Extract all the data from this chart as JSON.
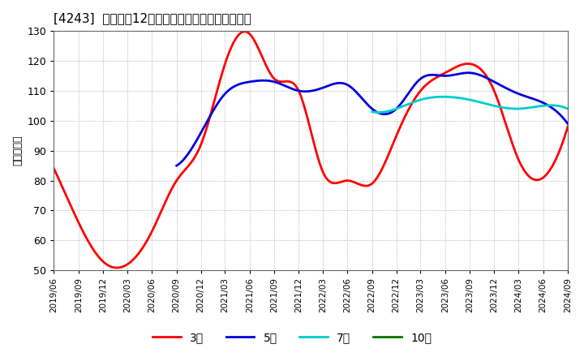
{
  "title": "[4243]  経常利益12か月移動合計の標準偏差の推移",
  "ylabel": "（百万円）",
  "ylim": [
    50,
    130
  ],
  "yticks": [
    50,
    60,
    70,
    80,
    90,
    100,
    110,
    120,
    130
  ],
  "background_color": "#ffffff",
  "plot_bg_color": "#ffffff",
  "grid_color": "#999999",
  "series": {
    "3年": {
      "color": "#ff0000",
      "points": [
        [
          "2019-06",
          84
        ],
        [
          "2019-09",
          66
        ],
        [
          "2019-12",
          53
        ],
        [
          "2020-03",
          52
        ],
        [
          "2020-06",
          63
        ],
        [
          "2020-09",
          80
        ],
        [
          "2020-12",
          92
        ],
        [
          "2021-03",
          119
        ],
        [
          "2021-06",
          129
        ],
        [
          "2021-09",
          114
        ],
        [
          "2021-12",
          110
        ],
        [
          "2022-03",
          83
        ],
        [
          "2022-06",
          80
        ],
        [
          "2022-09",
          79
        ],
        [
          "2022-12",
          95
        ],
        [
          "2023-03",
          110
        ],
        [
          "2023-06",
          116
        ],
        [
          "2023-09",
          119
        ],
        [
          "2023-12",
          110
        ],
        [
          "2024-03",
          87
        ],
        [
          "2024-06",
          81
        ],
        [
          "2024-09",
          98
        ]
      ]
    },
    "5年": {
      "color": "#0000dd",
      "points": [
        [
          "2020-09",
          85
        ],
        [
          "2020-12",
          96
        ],
        [
          "2021-03",
          109
        ],
        [
          "2021-06",
          113
        ],
        [
          "2021-09",
          113
        ],
        [
          "2021-12",
          110
        ],
        [
          "2022-03",
          111
        ],
        [
          "2022-06",
          112
        ],
        [
          "2022-09",
          104
        ],
        [
          "2022-12",
          104
        ],
        [
          "2023-03",
          114
        ],
        [
          "2023-06",
          115
        ],
        [
          "2023-09",
          116
        ],
        [
          "2023-12",
          113
        ],
        [
          "2024-03",
          109
        ],
        [
          "2024-06",
          106
        ],
        [
          "2024-09",
          99
        ]
      ]
    },
    "7年": {
      "color": "#00cccc",
      "points": [
        [
          "2022-09",
          103
        ],
        [
          "2022-12",
          104
        ],
        [
          "2023-03",
          107
        ],
        [
          "2023-06",
          108
        ],
        [
          "2023-09",
          107
        ],
        [
          "2023-12",
          105
        ],
        [
          "2024-03",
          104
        ],
        [
          "2024-06",
          105
        ],
        [
          "2024-09",
          104
        ]
      ]
    },
    "10年": {
      "color": "#007700",
      "points": []
    }
  },
  "xtick_labels": [
    "2019/06",
    "2019/09",
    "2019/12",
    "2020/03",
    "2020/06",
    "2020/09",
    "2020/12",
    "2021/03",
    "2021/06",
    "2021/09",
    "2021/12",
    "2022/03",
    "2022/06",
    "2022/09",
    "2022/12",
    "2023/03",
    "2023/06",
    "2023/09",
    "2023/12",
    "2024/03",
    "2024/06",
    "2024/09"
  ],
  "legend_labels": [
    "3年",
    "5年",
    "7年",
    "10年"
  ],
  "legend_colors": [
    "#ff0000",
    "#0000dd",
    "#00cccc",
    "#007700"
  ]
}
